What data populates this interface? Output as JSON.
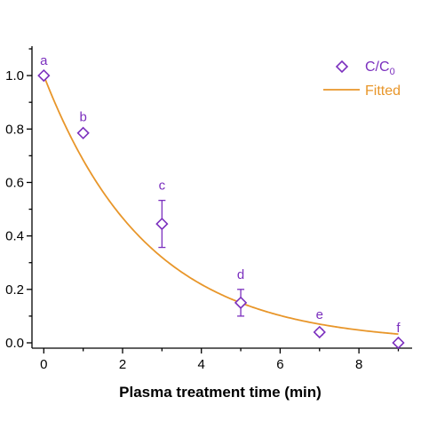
{
  "chart_data": {
    "type": "scatter",
    "title": "",
    "xlabel": "Plasma treatment time (min)",
    "ylabel": "",
    "xlim": [
      -0.3,
      9.35
    ],
    "ylim": [
      -0.02,
      1.11
    ],
    "xticks": [
      0,
      2,
      4,
      6,
      8
    ],
    "xtick_labels": [
      "0",
      "2",
      "4",
      "6",
      "8"
    ],
    "yticks": [
      0.0,
      0.2,
      0.4,
      0.6,
      0.8,
      1.0
    ],
    "ytick_labels": [
      "0.0",
      "0.2",
      "0.4",
      "0.6",
      "0.8",
      "1.0"
    ],
    "grid": false,
    "legend_position": "top-right",
    "series": [
      {
        "name": "C/C0",
        "name_main": "C/C",
        "name_sub": "0",
        "marker": "open-diamond",
        "color": "#7B2FBE",
        "x": [
          0,
          1,
          3,
          5,
          7,
          9
        ],
        "y": [
          1.0,
          0.785,
          0.445,
          0.15,
          0.04,
          0.0
        ],
        "error": [
          0,
          0.005,
          0.088,
          0.05,
          0.01,
          0
        ],
        "point_labels": [
          "a",
          "b",
          "c",
          "d",
          "e",
          "f"
        ]
      },
      {
        "name": "Fitted",
        "type": "line",
        "color": "#E8962A",
        "model": "y = exp(-k*x)",
        "k": 0.38
      }
    ]
  }
}
